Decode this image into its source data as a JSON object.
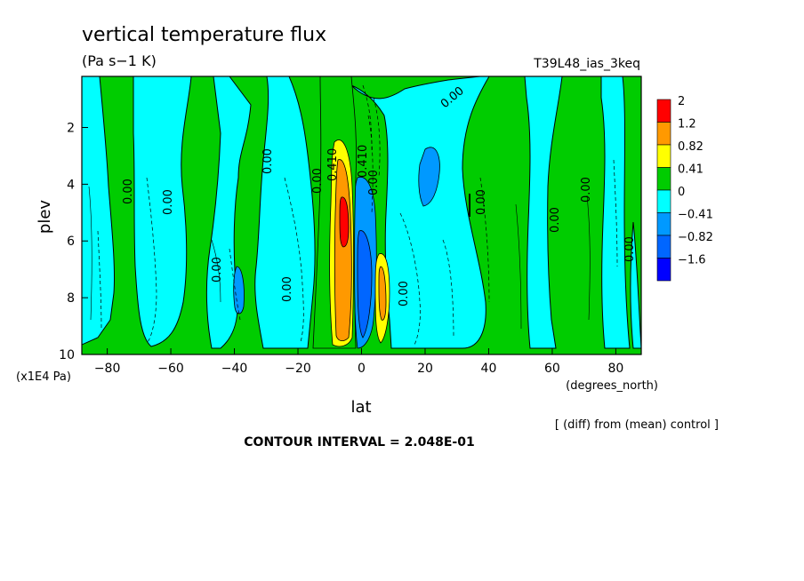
{
  "chart_data": {
    "type": "heatmap",
    "title": "vertical temperature flux",
    "units": "(Pa s−1 K)",
    "run_name": "T39L48_ias_3keq",
    "xlabel": "lat",
    "x_units": "(degrees_north)",
    "ylabel": "plev",
    "y_units": "(x1E4 Pa)",
    "x_ticks": [
      -80,
      -60,
      -40,
      -20,
      0,
      20,
      40,
      60,
      80
    ],
    "y_ticks": [
      2,
      4,
      6,
      8,
      10
    ],
    "xlim": [
      -88,
      88
    ],
    "ylim": [
      10,
      0.2
    ],
    "note": "[ (diff) from (mean) control ]",
    "contour_interval": "CONTOUR INTERVAL = 2.048E-01",
    "contour_labels": [
      "0.00",
      "0.410",
      "0.00",
      "0.410",
      "0.00"
    ],
    "legend": {
      "labels": [
        "2",
        "1.2",
        "0.82",
        "0.41",
        "0",
        "−0.41",
        "−0.82",
        "−1.6"
      ],
      "colors": [
        "#ff0000",
        "#ff9900",
        "#ffff00",
        "#00cc00",
        "#00ffff",
        "#0099ff",
        "#0066ff",
        "#0000ff"
      ]
    },
    "colors": {
      "positive_strong": "#ff0000",
      "positive_mid": "#ff9900",
      "positive_low": "#ffff00",
      "positive_weak": "#00cc00",
      "negative_weak": "#00ffff",
      "negative_mid": "#0099ff",
      "negative_strong": "#0066ff"
    }
  }
}
